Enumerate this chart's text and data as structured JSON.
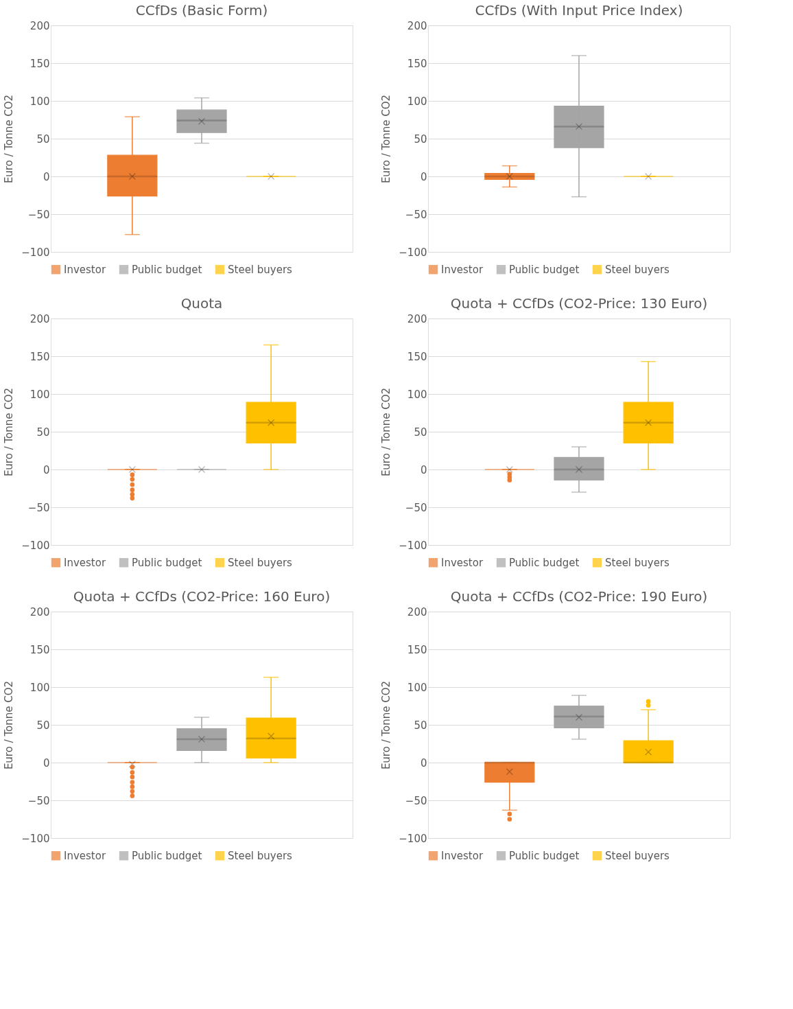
{
  "chart_data": [
    {
      "type": "box",
      "title": "CCfDs (Basic Form)",
      "ylabel": "Euro / Tonne CO2",
      "categories": [
        null
      ],
      "ylim": [
        -100,
        200
      ],
      "yticks": [
        -100,
        -50,
        0,
        50,
        100,
        150,
        200
      ],
      "grid": "y",
      "legend": "bottom",
      "tick_labels": "y",
      "series": [
        {
          "name": "Investor",
          "color": "#ed7d31",
          "boxes": [
            {
              "low": -77,
              "q1": -26,
              "median": 0,
              "q3": 28,
              "high": 79,
              "mean": 0
            }
          ]
        },
        {
          "name": "Public budget",
          "color": "#a5a5a5",
          "boxes": [
            {
              "low": 44,
              "q1": 58,
              "median": 74,
              "q3": 88,
              "high": 104,
              "mean": 73
            }
          ]
        },
        {
          "name": "Steel buyers",
          "color": "#ffc000",
          "boxes": [
            {
              "low": 0,
              "q1": 0,
              "median": 0,
              "q3": 0,
              "high": 0,
              "mean": 0
            }
          ]
        }
      ]
    },
    {
      "type": "box",
      "title": "CCfDs (With Input Price Index)",
      "ylabel": "Euro / Tonne CO2",
      "categories": [
        null
      ],
      "ylim": [
        -100,
        200
      ],
      "yticks": [
        -100,
        -50,
        0,
        50,
        100,
        150,
        200
      ],
      "grid": "y",
      "legend": "bottom",
      "tick_labels": "y",
      "series": [
        {
          "name": "Investor",
          "color": "#ed7d31",
          "boxes": [
            {
              "low": -14,
              "q1": -4,
              "median": 0,
              "q3": 4,
              "high": 14,
              "mean": 0
            }
          ]
        },
        {
          "name": "Public budget",
          "color": "#a5a5a5",
          "boxes": [
            {
              "low": -27,
              "q1": 38,
              "median": 66,
              "q3": 93,
              "high": 160,
              "mean": 66
            }
          ]
        },
        {
          "name": "Steel buyers",
          "color": "#ffc000",
          "boxes": [
            {
              "low": 0,
              "q1": 0,
              "median": 0,
              "q3": 0,
              "high": 0,
              "mean": 0
            }
          ]
        }
      ]
    },
    {
      "type": "box",
      "title": "Quota",
      "ylabel": "Euro / Tonne CO2",
      "categories": [
        null
      ],
      "ylim": [
        -100,
        200
      ],
      "yticks": [
        -100,
        -50,
        0,
        50,
        100,
        150,
        200
      ],
      "grid": "y",
      "legend": "bottom",
      "tick_labels": "y",
      "series": [
        {
          "name": "Investor",
          "color": "#ed7d31",
          "boxes": [
            {
              "low": 0,
              "q1": 0,
              "median": 0,
              "q3": 0,
              "high": 0,
              "mean": 0,
              "outliers": [
                -7,
                -13,
                -20,
                -27,
                -33,
                -38
              ]
            }
          ]
        },
        {
          "name": "Public budget",
          "color": "#a5a5a5",
          "boxes": [
            {
              "low": 0,
              "q1": 0,
              "median": 0,
              "q3": 0,
              "high": 0,
              "mean": 0
            }
          ]
        },
        {
          "name": "Steel buyers",
          "color": "#ffc000",
          "boxes": [
            {
              "low": 0,
              "q1": 35,
              "median": 62,
              "q3": 89,
              "high": 165,
              "mean": 62
            }
          ]
        }
      ]
    },
    {
      "type": "box",
      "title": "Quota + CCfDs (CO2-Price: 130 Euro)",
      "ylabel": "Euro / Tonne CO2",
      "categories": [
        null
      ],
      "ylim": [
        -100,
        200
      ],
      "yticks": [
        -100,
        -50,
        0,
        50,
        100,
        150,
        200
      ],
      "grid": "y",
      "legend": "bottom",
      "tick_labels": "y",
      "series": [
        {
          "name": "Investor",
          "color": "#ed7d31",
          "boxes": [
            {
              "low": 0,
              "q1": 0,
              "median": 0,
              "q3": 0,
              "high": 0,
              "mean": 0,
              "outliers": [
                -6,
                -10,
                -14
              ]
            }
          ]
        },
        {
          "name": "Public budget",
          "color": "#a5a5a5",
          "boxes": [
            {
              "low": -30,
              "q1": -14,
              "median": 0,
              "q3": 16,
              "high": 30,
              "mean": 0
            }
          ]
        },
        {
          "name": "Steel buyers",
          "color": "#ffc000",
          "boxes": [
            {
              "low": 0,
              "q1": 35,
              "median": 62,
              "q3": 89,
              "high": 143,
              "mean": 62
            }
          ]
        }
      ]
    },
    {
      "type": "box",
      "title": "Quota + CCfDs (CO2-Price: 160 Euro)",
      "ylabel": "Euro / Tonne CO2",
      "categories": [
        null
      ],
      "ylim": [
        -100,
        200
      ],
      "yticks": [
        -100,
        -50,
        0,
        50,
        100,
        150,
        200
      ],
      "grid": "y",
      "legend": "bottom",
      "tick_labels": "y",
      "series": [
        {
          "name": "Investor",
          "color": "#ed7d31",
          "boxes": [
            {
              "low": 0,
              "q1": 0,
              "median": 0,
              "q3": 0,
              "high": 0,
              "mean": -2,
              "outliers": [
                -6,
                -13,
                -19,
                -26,
                -32,
                -38,
                -44
              ]
            }
          ]
        },
        {
          "name": "Public budget",
          "color": "#a5a5a5",
          "boxes": [
            {
              "low": 0,
              "q1": 16,
              "median": 31,
              "q3": 45,
              "high": 60,
              "mean": 31
            }
          ]
        },
        {
          "name": "Steel buyers",
          "color": "#ffc000",
          "boxes": [
            {
              "low": 0,
              "q1": 6,
              "median": 32,
              "q3": 59,
              "high": 113,
              "mean": 35
            }
          ]
        }
      ]
    },
    {
      "type": "box",
      "title": "Quota + CCfDs (CO2-Price: 190 Euro)",
      "ylabel": "Euro / Tonne CO2",
      "categories": [
        null
      ],
      "ylim": [
        -100,
        200
      ],
      "yticks": [
        -100,
        -50,
        0,
        50,
        100,
        150,
        200
      ],
      "grid": "y",
      "legend": "bottom",
      "tick_labels": "y",
      "series": [
        {
          "name": "Investor",
          "color": "#ed7d31",
          "boxes": [
            {
              "low": -63,
              "q1": -26,
              "median": 0,
              "q3": 0,
              "high": 0,
              "mean": -12,
              "outliers": [
                -68,
                -75
              ]
            }
          ]
        },
        {
          "name": "Public budget",
          "color": "#a5a5a5",
          "boxes": [
            {
              "low": 31,
              "q1": 46,
              "median": 61,
              "q3": 75,
              "high": 89,
              "mean": 60
            }
          ]
        },
        {
          "name": "Steel buyers",
          "color": "#ffc000",
          "boxes": [
            {
              "low": 0,
              "q1": 0,
              "median": 0,
              "q3": 29,
              "high": 70,
              "mean": 14,
              "outliers": [
                76,
                81
              ]
            }
          ]
        }
      ]
    }
  ]
}
